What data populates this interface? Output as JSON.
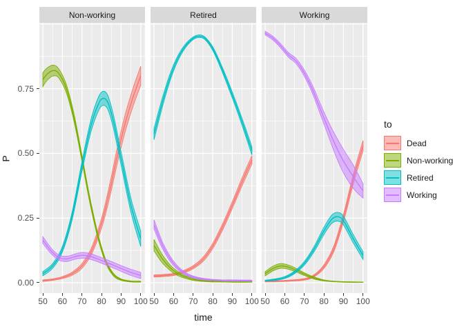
{
  "chart_data": {
    "type": "line",
    "subtype": "faceted-ribbon-bands",
    "title": "",
    "xlabel": "time",
    "ylabel": "P",
    "xlim": [
      48.2,
      102.2
    ],
    "ylim": [
      -0.04,
      1.005
    ],
    "x_ticks": [
      50,
      60,
      70,
      80,
      90,
      100
    ],
    "x_minor": [
      55,
      65,
      75,
      85,
      95
    ],
    "y_ticks": [
      0,
      0.25,
      0.5,
      0.75
    ],
    "y_tick_labels": [
      "0.00",
      "0.25",
      "0.50",
      "0.75"
    ],
    "y_major": [
      0,
      0.25,
      0.5,
      0.75,
      1.0
    ],
    "y_minor": [
      0.125,
      0.375,
      0.625,
      0.875
    ],
    "grid": true,
    "legend": {
      "title": "to",
      "position": "right",
      "entries": [
        "Dead",
        "Non-working",
        "Retired",
        "Working"
      ]
    },
    "colors": {
      "Dead": "#F8766D",
      "Non-working": "#7CAE00",
      "Retired": "#00BFC4",
      "Working": "#C77CFF"
    },
    "theme": {
      "panel_bg": "#EBEBEB",
      "strip_bg": "#D9D9D9",
      "grid_color": "#FFFFFF",
      "tick_text": "#4D4D4D",
      "ribbon_alpha": 0.5
    },
    "series_order": [
      "Dead",
      "Non-working",
      "Retired",
      "Working"
    ],
    "point_format": "[time, P_estimate, ci_halfwidth]",
    "facets": [
      {
        "label": "Non-working",
        "series": {
          "Dead": [
            [
              50,
              0.008,
              0.003
            ],
            [
              55,
              0.012,
              0.003
            ],
            [
              60,
              0.02,
              0.004
            ],
            [
              65,
              0.035,
              0.006
            ],
            [
              70,
              0.065,
              0.009
            ],
            [
              75,
              0.125,
              0.013
            ],
            [
              80,
              0.23,
              0.019
            ],
            [
              84,
              0.35,
              0.025
            ],
            [
              88,
              0.49,
              0.03
            ],
            [
              92,
              0.615,
              0.033
            ],
            [
              96,
              0.715,
              0.035
            ],
            [
              100,
              0.8,
              0.037
            ]
          ],
          "Non-working": [
            [
              50,
              0.785,
              0.027
            ],
            [
              52,
              0.805,
              0.024
            ],
            [
              55,
              0.82,
              0.021
            ],
            [
              58,
              0.81,
              0.018
            ],
            [
              62,
              0.75,
              0.016
            ],
            [
              66,
              0.635,
              0.014
            ],
            [
              70,
              0.48,
              0.012
            ],
            [
              74,
              0.32,
              0.011
            ],
            [
              78,
              0.185,
              0.009
            ],
            [
              82,
              0.085,
              0.007
            ],
            [
              86,
              0.032,
              0.005
            ],
            [
              90,
              0.012,
              0.003
            ],
            [
              95,
              0.005,
              0.002
            ],
            [
              100,
              0.004,
              0.002
            ]
          ],
          "Retired": [
            [
              50,
              0.035,
              0.008
            ],
            [
              55,
              0.065,
              0.009
            ],
            [
              60,
              0.13,
              0.011
            ],
            [
              65,
              0.26,
              0.015
            ],
            [
              70,
              0.45,
              0.019
            ],
            [
              74,
              0.59,
              0.023
            ],
            [
              77,
              0.665,
              0.026
            ],
            [
              80,
              0.71,
              0.027
            ],
            [
              83,
              0.7,
              0.027
            ],
            [
              86,
              0.625,
              0.026
            ],
            [
              90,
              0.48,
              0.026
            ],
            [
              95,
              0.3,
              0.027
            ],
            [
              100,
              0.17,
              0.03
            ]
          ],
          "Working": [
            [
              50,
              0.165,
              0.013
            ],
            [
              54,
              0.125,
              0.011
            ],
            [
              58,
              0.098,
              0.01
            ],
            [
              62,
              0.092,
              0.01
            ],
            [
              66,
              0.1,
              0.01
            ],
            [
              70,
              0.106,
              0.011
            ],
            [
              74,
              0.102,
              0.011
            ],
            [
              78,
              0.092,
              0.011
            ],
            [
              82,
              0.08,
              0.011
            ],
            [
              86,
              0.068,
              0.011
            ],
            [
              90,
              0.055,
              0.011
            ],
            [
              95,
              0.04,
              0.012
            ],
            [
              100,
              0.028,
              0.012
            ]
          ]
        }
      },
      {
        "label": "Retired",
        "series": {
          "Dead": [
            [
              50,
              0.026,
              0.004
            ],
            [
              55,
              0.028,
              0.004
            ],
            [
              60,
              0.032,
              0.004
            ],
            [
              65,
              0.042,
              0.005
            ],
            [
              70,
              0.06,
              0.006
            ],
            [
              75,
              0.09,
              0.008
            ],
            [
              80,
              0.142,
              0.01
            ],
            [
              85,
              0.215,
              0.012
            ],
            [
              90,
              0.3,
              0.013
            ],
            [
              95,
              0.39,
              0.015
            ],
            [
              100,
              0.475,
              0.016
            ]
          ],
          "Non-working": [
            [
              50,
              0.145,
              0.022
            ],
            [
              54,
              0.095,
              0.016
            ],
            [
              58,
              0.06,
              0.011
            ],
            [
              62,
              0.036,
              0.008
            ],
            [
              66,
              0.022,
              0.005
            ],
            [
              70,
              0.013,
              0.004
            ],
            [
              75,
              0.007,
              0.002
            ],
            [
              80,
              0.005,
              0.002
            ],
            [
              85,
              0.004,
              0.001
            ],
            [
              90,
              0.003,
              0.001
            ],
            [
              100,
              0.003,
              0.001
            ]
          ],
          "Retired": [
            [
              50,
              0.575,
              0.022
            ],
            [
              54,
              0.69,
              0.018
            ],
            [
              58,
              0.79,
              0.014
            ],
            [
              62,
              0.865,
              0.01
            ],
            [
              66,
              0.915,
              0.007
            ],
            [
              70,
              0.945,
              0.005
            ],
            [
              73,
              0.953,
              0.005
            ],
            [
              76,
              0.945,
              0.005
            ],
            [
              80,
              0.905,
              0.007
            ],
            [
              84,
              0.84,
              0.009
            ],
            [
              88,
              0.765,
              0.011
            ],
            [
              92,
              0.685,
              0.012
            ],
            [
              96,
              0.6,
              0.014
            ],
            [
              100,
              0.51,
              0.016
            ]
          ],
          "Working": [
            [
              50,
              0.225,
              0.018
            ],
            [
              54,
              0.15,
              0.013
            ],
            [
              58,
              0.095,
              0.01
            ],
            [
              62,
              0.058,
              0.007
            ],
            [
              66,
              0.035,
              0.005
            ],
            [
              70,
              0.022,
              0.004
            ],
            [
              75,
              0.014,
              0.003
            ],
            [
              80,
              0.011,
              0.002
            ],
            [
              85,
              0.009,
              0.002
            ],
            [
              90,
              0.009,
              0.002
            ],
            [
              100,
              0.008,
              0.002
            ]
          ]
        }
      },
      {
        "label": "Working",
        "series": {
          "Dead": [
            [
              50,
              0.005,
              0.002
            ],
            [
              60,
              0.007,
              0.002
            ],
            [
              70,
              0.013,
              0.003
            ],
            [
              75,
              0.027,
              0.004
            ],
            [
              80,
              0.062,
              0.007
            ],
            [
              85,
              0.13,
              0.011
            ],
            [
              90,
              0.25,
              0.015
            ],
            [
              95,
              0.4,
              0.018
            ],
            [
              100,
              0.53,
              0.02
            ]
          ],
          "Non-working": [
            [
              50,
              0.035,
              0.008
            ],
            [
              54,
              0.055,
              0.009
            ],
            [
              58,
              0.065,
              0.009
            ],
            [
              62,
              0.06,
              0.008
            ],
            [
              66,
              0.048,
              0.007
            ],
            [
              70,
              0.033,
              0.005
            ],
            [
              75,
              0.018,
              0.004
            ],
            [
              80,
              0.009,
              0.002
            ],
            [
              85,
              0.005,
              0.001
            ],
            [
              90,
              0.003,
              0.001
            ],
            [
              100,
              0.002,
              0.001
            ]
          ],
          "Retired": [
            [
              50,
              0.008,
              0.002
            ],
            [
              55,
              0.012,
              0.003
            ],
            [
              60,
              0.02,
              0.004
            ],
            [
              65,
              0.04,
              0.005
            ],
            [
              70,
              0.075,
              0.007
            ],
            [
              75,
              0.13,
              0.01
            ],
            [
              80,
              0.2,
              0.014
            ],
            [
              84,
              0.245,
              0.016
            ],
            [
              87,
              0.255,
              0.017
            ],
            [
              90,
              0.24,
              0.017
            ],
            [
              95,
              0.17,
              0.016
            ],
            [
              100,
              0.105,
              0.015
            ]
          ],
          "Working": [
            [
              50,
              0.965,
              0.007
            ],
            [
              54,
              0.945,
              0.007
            ],
            [
              58,
              0.915,
              0.008
            ],
            [
              62,
              0.88,
              0.009
            ],
            [
              66,
              0.855,
              0.01
            ],
            [
              70,
              0.81,
              0.012
            ],
            [
              74,
              0.75,
              0.015
            ],
            [
              78,
              0.675,
              0.02
            ],
            [
              82,
              0.6,
              0.027
            ],
            [
              86,
              0.53,
              0.038
            ],
            [
              90,
              0.47,
              0.045
            ],
            [
              95,
              0.41,
              0.045
            ],
            [
              100,
              0.355,
              0.028
            ]
          ]
        }
      }
    ]
  }
}
